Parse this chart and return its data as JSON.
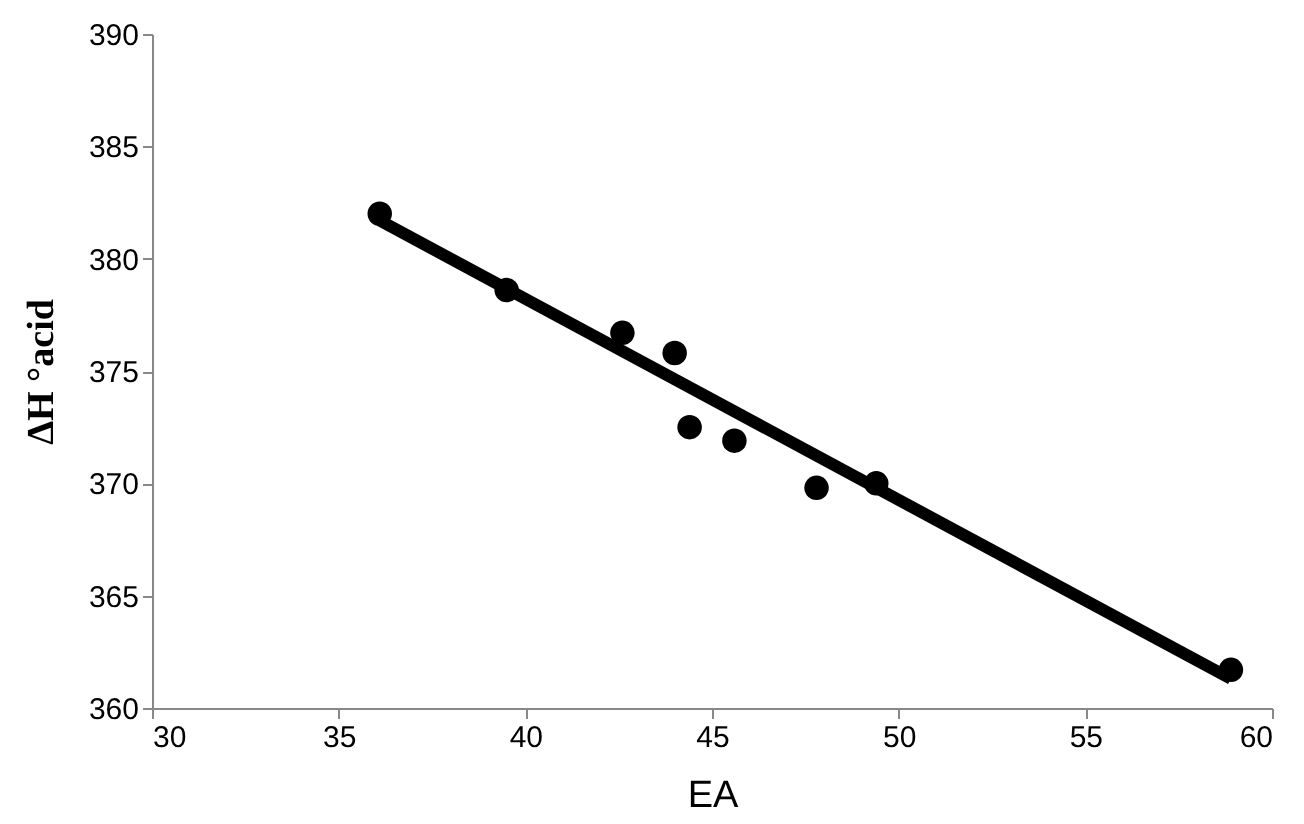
{
  "chart_data": {
    "type": "scatter",
    "xlabel": "EA",
    "ylabel": "ΔH °acid",
    "xlim": [
      30,
      60
    ],
    "xticks": [
      30,
      35,
      40,
      45,
      50,
      55,
      60
    ],
    "ylim": [
      360,
      390
    ],
    "yticks": [
      360,
      365,
      370,
      375,
      380,
      385,
      390
    ],
    "grid": false,
    "marker": "circle",
    "series": [
      {
        "color": "#000000",
        "x": [
          36.1,
          39.5,
          42.6,
          44.0,
          44.4,
          45.6,
          47.8,
          49.4,
          58.9
        ],
        "values": [
          382.0,
          378.6,
          376.7,
          375.8,
          372.5,
          371.9,
          369.8,
          370.0,
          361.7
        ]
      },
      {
        "type": "line",
        "color": "#000000",
        "line_style": "solid",
        "marker": "none",
        "x": [
          36.1,
          58.9
        ],
        "values": [
          381.7,
          361.3
        ]
      }
    ]
  }
}
